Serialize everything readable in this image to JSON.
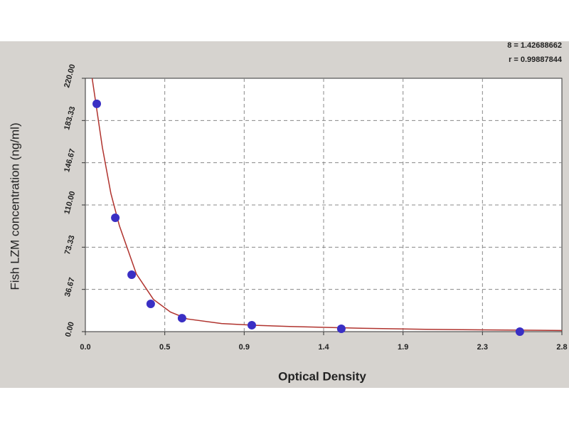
{
  "chart_data": {
    "type": "scatter",
    "annotations": [
      "8 = 1.42688662",
      "r = 0.99887844"
    ],
    "x_label": "Optical Density",
    "y_label": "Fish LZM concentration (ng/ml)",
    "xlim": [
      0,
      2.8
    ],
    "ylim": [
      0,
      220
    ],
    "xticks": [
      {
        "value": 0,
        "label": "0.0"
      },
      {
        "value": 0.4667,
        "label": "0.5"
      },
      {
        "value": 0.9333,
        "label": "0.9"
      },
      {
        "value": 1.4,
        "label": "1.4"
      },
      {
        "value": 1.8667,
        "label": "1.9"
      },
      {
        "value": 2.3333,
        "label": "2.3"
      },
      {
        "value": 2.8,
        "label": "2.8"
      }
    ],
    "yticks": [
      {
        "value": 0,
        "label": "0.00"
      },
      {
        "value": 36.67,
        "label": "36.67"
      },
      {
        "value": 73.33,
        "label": "73.33"
      },
      {
        "value": 110,
        "label": "110.00"
      },
      {
        "value": 146.67,
        "label": "146.67"
      },
      {
        "value": 183.33,
        "label": "183.33"
      },
      {
        "value": 220,
        "label": "220.00"
      }
    ],
    "grid": true,
    "points": {
      "color": "#3a2fc4",
      "x": [
        0.067,
        0.176,
        0.272,
        0.384,
        0.568,
        0.978,
        1.504,
        2.553
      ],
      "values": [
        197.8,
        98.9,
        49.4,
        24.1,
        11.7,
        5.6,
        2.5,
        0
      ]
    },
    "curve": {
      "color": "#b0332e",
      "x": [
        0.04,
        0.1,
        0.15,
        0.2,
        0.3,
        0.4,
        0.5,
        0.6,
        0.8,
        1.0,
        1.2,
        1.6,
        2.0,
        2.4,
        2.8
      ],
      "values": [
        220,
        160,
        120,
        92,
        50,
        28,
        17,
        11,
        7,
        5.5,
        4.5,
        3,
        2,
        1.5,
        1
      ]
    }
  }
}
